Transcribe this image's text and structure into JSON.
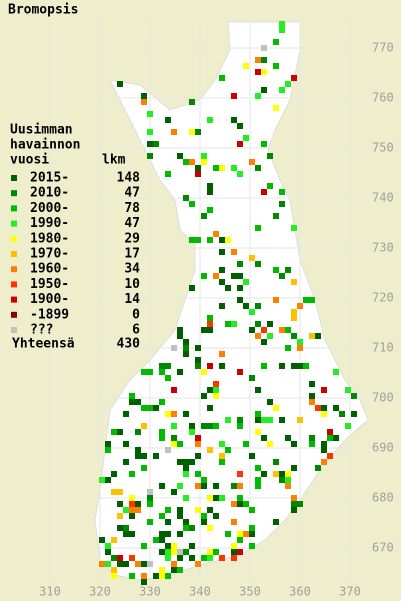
{
  "title": "Bromopsis",
  "legend": {
    "heading": [
      "Uusimman",
      "havainnon",
      "vuosi"
    ],
    "count_heading": "lkm",
    "items": [
      {
        "label": "2015-",
        "count": 148,
        "color": "#006000"
      },
      {
        "label": "2010-",
        "count": 47,
        "color": "#008800"
      },
      {
        "label": "2000-",
        "count": 78,
        "color": "#00bb00"
      },
      {
        "label": "1990-",
        "count": 47,
        "color": "#22ee22"
      },
      {
        "label": "1980-",
        "count": 29,
        "color": "#ffff00"
      },
      {
        "label": "1970-",
        "count": 17,
        "color": "#ffc000"
      },
      {
        "label": "1960-",
        "count": 34,
        "color": "#ff8000"
      },
      {
        "label": "1950-",
        "count": 10,
        "color": "#ff3300"
      },
      {
        "label": "1900-",
        "count": 14,
        "color": "#cc0000"
      },
      {
        "label": "-1899",
        "count": 0,
        "color": "#880000"
      },
      {
        "label": "???",
        "count": 6,
        "color": "#c0c0c0"
      }
    ],
    "total": {
      "label": "Yhteensä",
      "count": 430
    }
  },
  "axes": {
    "y_labels": [
      770,
      760,
      750,
      740,
      730,
      720,
      710,
      700,
      690,
      680,
      670
    ],
    "x_labels": [
      310,
      320,
      330,
      340,
      350,
      360,
      370
    ]
  }
}
